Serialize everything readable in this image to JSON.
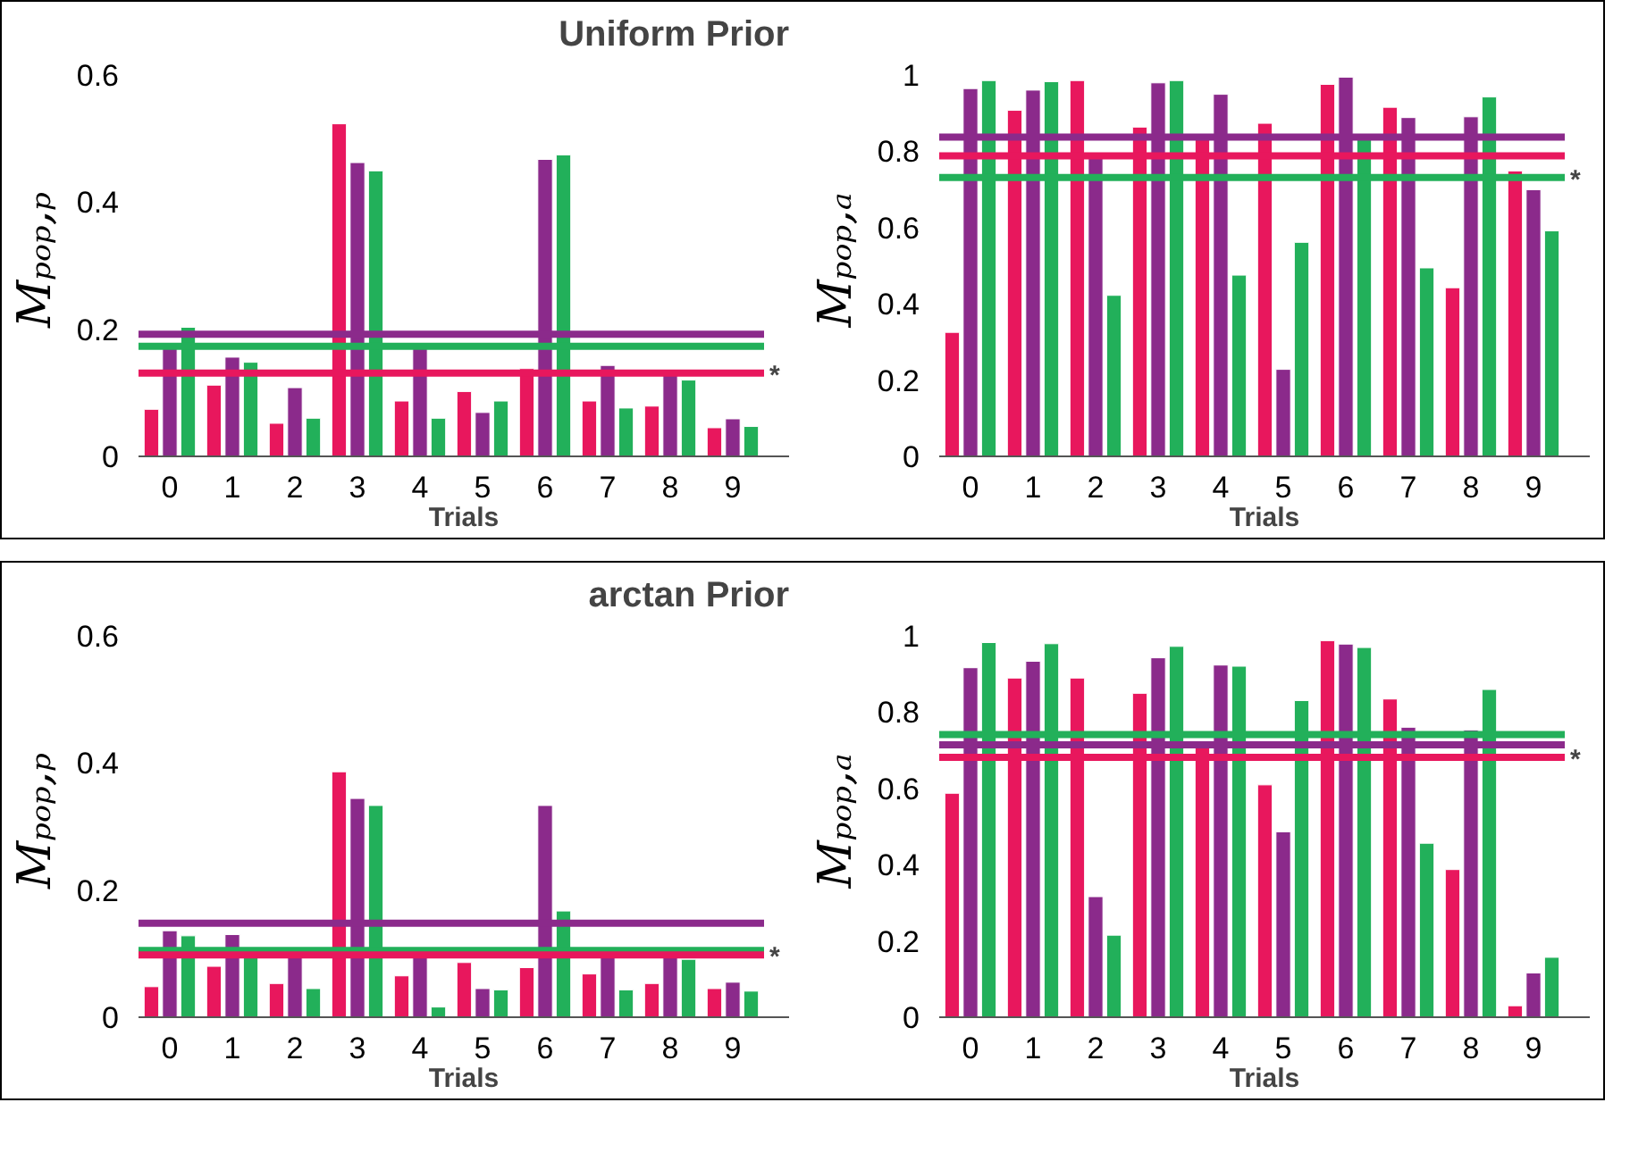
{
  "chart_data": [
    {
      "type": "bar",
      "title": "Uniform Prior",
      "xlabel": "Trials",
      "ylabel": "Mₚₒₚ,ₚ",
      "categories": [
        "0",
        "1",
        "2",
        "3",
        "4",
        "5",
        "6",
        "7",
        "8",
        "9"
      ],
      "ylim": [
        0,
        0.6
      ],
      "yticks": [
        0,
        0.2,
        0.4,
        0.6
      ],
      "series": [
        {
          "color": "#e8175d",
          "values": [
            0.074,
            0.112,
            0.052,
            0.523,
            0.087,
            0.102,
            0.138,
            0.087,
            0.079,
            0.045
          ]
        },
        {
          "color": "#8b2a8b",
          "values": [
            0.175,
            0.156,
            0.108,
            0.462,
            0.17,
            0.069,
            0.467,
            0.143,
            0.13,
            0.059
          ]
        },
        {
          "color": "#22b05a",
          "values": [
            0.203,
            0.148,
            0.06,
            0.449,
            0.06,
            0.087,
            0.474,
            0.076,
            0.12,
            0.047
          ]
        }
      ],
      "ref_lines": [
        {
          "axis": "y",
          "value": 0.192,
          "color": "#8b2a8b"
        },
        {
          "axis": "y",
          "value": 0.173,
          "color": "#22b05a"
        },
        {
          "axis": "y",
          "value": 0.131,
          "color": "#e8175d",
          "label": "*"
        }
      ]
    },
    {
      "type": "bar",
      "xlabel": "Trials",
      "ylabel": "Mₚₒₚ,ₐ",
      "categories": [
        "0",
        "1",
        "2",
        "3",
        "4",
        "5",
        "6",
        "7",
        "8",
        "9"
      ],
      "ylim": [
        0,
        1
      ],
      "yticks": [
        0,
        0.2,
        0.4,
        0.6,
        0.8,
        1
      ],
      "series": [
        {
          "color": "#e8175d",
          "values": [
            0.325,
            0.907,
            0.985,
            0.863,
            0.83,
            0.873,
            0.975,
            0.915,
            0.442,
            0.748
          ]
        },
        {
          "color": "#8b2a8b",
          "values": [
            0.964,
            0.96,
            0.79,
            0.979,
            0.949,
            0.228,
            0.994,
            0.888,
            0.89,
            0.699
          ]
        },
        {
          "color": "#22b05a",
          "values": [
            0.985,
            0.982,
            0.422,
            0.985,
            0.475,
            0.561,
            0.83,
            0.494,
            0.942,
            0.591
          ]
        }
      ],
      "ref_lines": [
        {
          "axis": "y",
          "value": 0.837,
          "color": "#8b2a8b"
        },
        {
          "axis": "y",
          "value": 0.788,
          "color": "#e8175d"
        },
        {
          "axis": "y",
          "value": 0.731,
          "color": "#22b05a",
          "label": "*"
        }
      ]
    },
    {
      "type": "bar",
      "title": "arctan Prior",
      "xlabel": "Trials",
      "ylabel": "Mₚₒₚ,ₚ",
      "categories": [
        "0",
        "1",
        "2",
        "3",
        "4",
        "5",
        "6",
        "7",
        "8",
        "9"
      ],
      "ylim": [
        0,
        0.6
      ],
      "yticks": [
        0,
        0.2,
        0.4,
        0.6
      ],
      "series": [
        {
          "color": "#e8175d",
          "values": [
            0.048,
            0.08,
            0.053,
            0.386,
            0.065,
            0.086,
            0.078,
            0.068,
            0.053,
            0.045
          ]
        },
        {
          "color": "#8b2a8b",
          "values": [
            0.136,
            0.13,
            0.096,
            0.344,
            0.096,
            0.045,
            0.333,
            0.11,
            0.096,
            0.055
          ]
        },
        {
          "color": "#22b05a",
          "values": [
            0.128,
            0.1,
            0.045,
            0.333,
            0.016,
            0.043,
            0.167,
            0.043,
            0.091,
            0.041
          ]
        }
      ],
      "ref_lines": [
        {
          "axis": "y",
          "value": 0.148,
          "color": "#8b2a8b"
        },
        {
          "axis": "y",
          "value": 0.105,
          "color": "#22b05a"
        },
        {
          "axis": "y",
          "value": 0.098,
          "color": "#e8175d",
          "label": "*"
        }
      ]
    },
    {
      "type": "bar",
      "xlabel": "Trials",
      "ylabel": "Mₚₒₚ,ₐ",
      "categories": [
        "0",
        "1",
        "2",
        "3",
        "4",
        "5",
        "6",
        "7",
        "8",
        "9"
      ],
      "ylim": [
        0,
        1
      ],
      "yticks": [
        0,
        0.2,
        0.4,
        0.6,
        0.8,
        1
      ],
      "series": [
        {
          "color": "#e8175d",
          "values": [
            0.587,
            0.889,
            0.889,
            0.849,
            0.71,
            0.609,
            0.987,
            0.834,
            0.387,
            0.03
          ]
        },
        {
          "color": "#8b2a8b",
          "values": [
            0.916,
            0.933,
            0.316,
            0.942,
            0.923,
            0.486,
            0.978,
            0.76,
            0.753,
            0.116
          ]
        },
        {
          "color": "#22b05a",
          "values": [
            0.982,
            0.979,
            0.215,
            0.972,
            0.92,
            0.83,
            0.969,
            0.456,
            0.859,
            0.157
          ]
        }
      ],
      "ref_lines": [
        {
          "axis": "y",
          "value": 0.741,
          "color": "#22b05a"
        },
        {
          "axis": "y",
          "value": 0.714,
          "color": "#8b2a8b"
        },
        {
          "axis": "y",
          "value": 0.681,
          "color": "#e8175d",
          "label": "*"
        }
      ]
    }
  ]
}
